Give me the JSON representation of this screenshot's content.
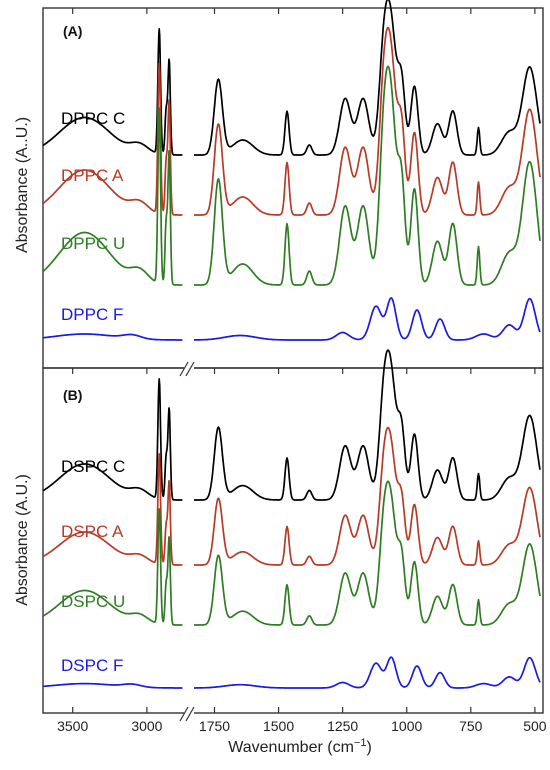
{
  "chart_data": [
    {
      "type": "line",
      "panel_label": "(A)",
      "ylabel": "Absorbance (A..U.)",
      "xlabel": "",
      "x_reversed": true,
      "broken_x_axis": {
        "left_range": [
          3700,
          2750
        ],
        "right_range": [
          1830,
          480
        ]
      },
      "series": [
        {
          "name": "DPPC C",
          "color": "#000000"
        },
        {
          "name": "DPPC A",
          "color": "#b83a26"
        },
        {
          "name": "DPPC U",
          "color": "#2e7d22"
        },
        {
          "name": "DPPC F",
          "color": "#1a1ae6"
        }
      ]
    },
    {
      "type": "line",
      "panel_label": "(B)",
      "ylabel": "Absorbance (A.U.)",
      "x_reversed": true,
      "broken_x_axis": {
        "left_range": [
          3700,
          2750
        ],
        "right_range": [
          1830,
          480
        ]
      },
      "series": [
        {
          "name": "DSPC C",
          "color": "#000000"
        },
        {
          "name": "DSPC A",
          "color": "#b83a26"
        },
        {
          "name": "DSPC U",
          "color": "#2e7d22"
        },
        {
          "name": "DSPC F",
          "color": "#1a1ae6"
        }
      ]
    }
  ],
  "x_axis": {
    "title_main": "Wavenumber (cm",
    "title_sup": "−1",
    "title_end": ")",
    "left_ticks": [
      "3500",
      "3000"
    ],
    "right_ticks": [
      "1750",
      "1500",
      "1250",
      "1000",
      "750",
      "500"
    ]
  }
}
